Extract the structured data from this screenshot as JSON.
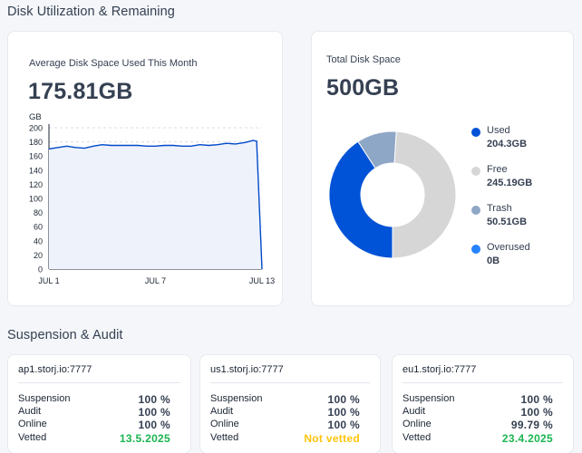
{
  "utilization": {
    "section_title": "Disk Utilization & Remaining",
    "avg_card": {
      "label": "Average Disk Space Used This Month",
      "value": "175.81GB",
      "chart_data": {
        "type": "area",
        "ylabel": "GB",
        "ylim": [
          0,
          200
        ],
        "yticks": [
          "0",
          "20",
          "40",
          "60",
          "80",
          "100",
          "120",
          "140",
          "160",
          "180",
          "200"
        ],
        "xtick_labels": [
          "JUL 1",
          "JUL 7",
          "JUL 13"
        ],
        "x": [
          0,
          0.5,
          1,
          1.5,
          2,
          2.5,
          3,
          3.5,
          4,
          4.5,
          5,
          5.5,
          6,
          6.5,
          7,
          7.5,
          8,
          8.5,
          9,
          9.5,
          10,
          10.5,
          11,
          11.2,
          11.5,
          11.7,
          12
        ],
        "values": [
          170,
          172,
          174,
          172,
          171,
          174,
          176,
          175,
          175,
          175,
          175,
          174,
          174,
          175,
          175,
          174,
          174,
          176,
          175,
          176,
          178,
          177,
          179,
          180,
          182,
          181,
          0
        ],
        "line_color": "#0149c9",
        "fill_color": "#eef2fb",
        "grid": true
      }
    },
    "total_card": {
      "label": "Total Disk Space",
      "value": "500GB",
      "chart_data": {
        "type": "pie",
        "slices": [
          {
            "name": "Used",
            "value": 204.3,
            "display": "204.3GB",
            "color": "#0052d6"
          },
          {
            "name": "Free",
            "value": 245.19,
            "display": "245.19GB",
            "color": "#d6d6d6"
          },
          {
            "name": "Trash",
            "value": 50.51,
            "display": "50.51GB",
            "color": "#8fa7c6"
          },
          {
            "name": "Overused",
            "value": 0,
            "display": "0B",
            "color": "#2582ff"
          }
        ]
      }
    }
  },
  "suspension": {
    "section_title": "Suspension & Audit",
    "labels": {
      "suspension": "Suspension",
      "audit": "Audit",
      "online": "Online",
      "vetted": "Vetted"
    },
    "satellites": [
      {
        "name": "ap1.storj.io:7777",
        "suspension": "100 %",
        "audit": "100 %",
        "online": "100 %",
        "vetted": "13.5.2025",
        "vetted_status": "green"
      },
      {
        "name": "us1.storj.io:7777",
        "suspension": "100 %",
        "audit": "100 %",
        "online": "100 %",
        "vetted": "Not vetted",
        "vetted_status": "yellow"
      },
      {
        "name": "eu1.storj.io:7777",
        "suspension": "100 %",
        "audit": "100 %",
        "online": "99.79 %",
        "vetted": "23.4.2025",
        "vetted_status": "green"
      }
    ]
  }
}
